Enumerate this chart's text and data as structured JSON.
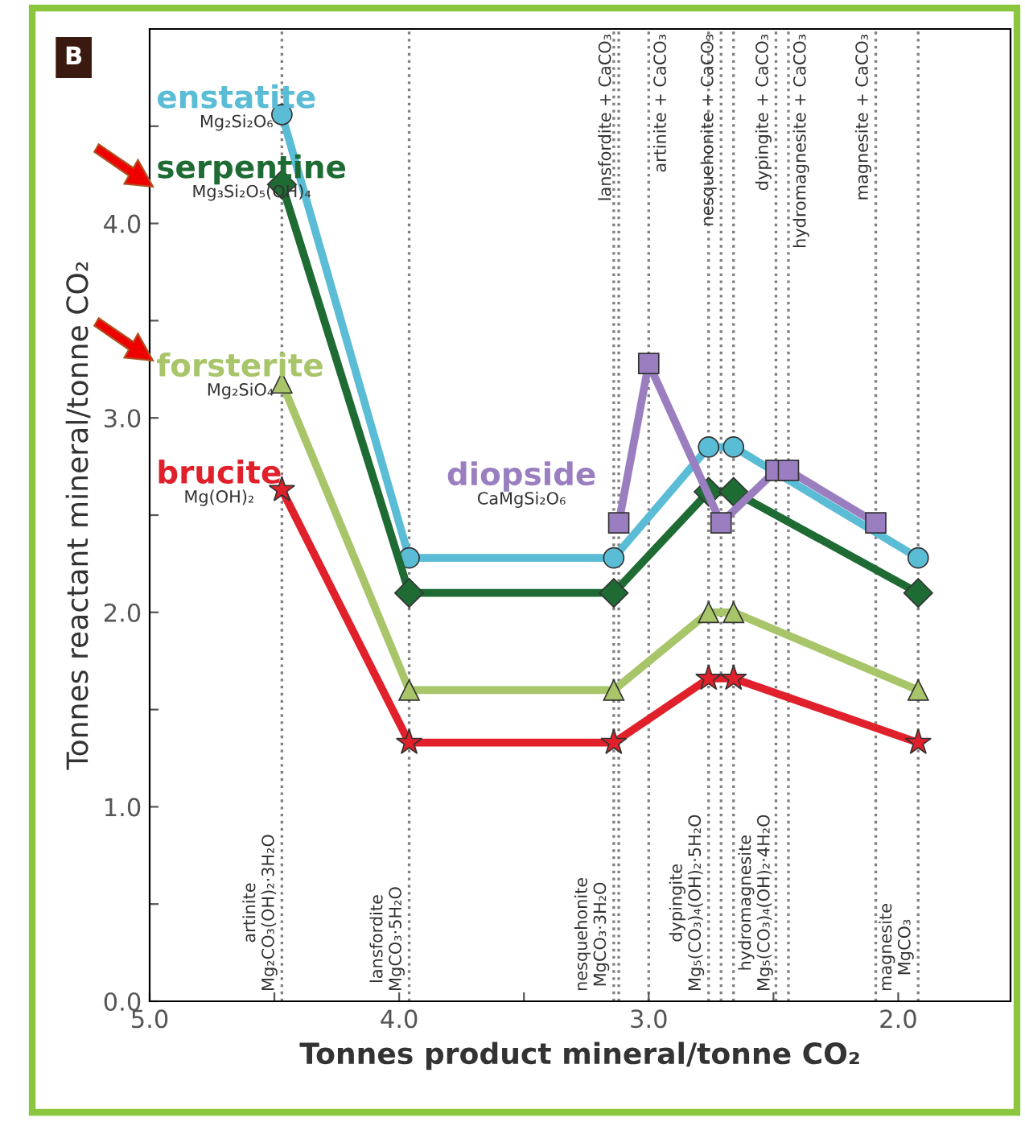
{
  "chart_data": {
    "type": "line",
    "xlabel": "Tonnes product mineral/tonne CO₂",
    "ylabel": "Tonnes reactant mineral/tonne CO₂",
    "annotations": [
      "B",
      "Mg₂Si₂O₆",
      "Mg₃Si₂O₅(OH)₄",
      "Mg₂SiO₄",
      "Mg(OH)₂",
      "CaMgSi₂O₆"
    ],
    "xlim": [
      5.0,
      1.55
    ],
    "ylim": [
      0,
      5.0
    ],
    "xticks": [
      {
        "value": 5.0,
        "label": "5.0"
      },
      {
        "value": 4.5,
        "label": null
      },
      {
        "value": 4.0,
        "label": "4.0"
      },
      {
        "value": 3.5,
        "label": null
      },
      {
        "value": 3.0,
        "label": "3.0"
      },
      {
        "value": 2.5,
        "label": null
      },
      {
        "value": 2.0,
        "label": "2.0"
      }
    ],
    "yticks": [
      {
        "value": 0,
        "label": "0.0"
      },
      {
        "value": 0.5,
        "label": null
      },
      {
        "value": 1,
        "label": "1.0"
      },
      {
        "value": 1.5,
        "label": null
      },
      {
        "value": 2,
        "label": "2.0"
      },
      {
        "value": 2.5,
        "label": null
      },
      {
        "value": 3,
        "label": "3.0"
      },
      {
        "value": 3.5,
        "label": null
      },
      {
        "value": 4,
        "label": "4.0"
      },
      {
        "value": 4.5,
        "label": null
      }
    ],
    "grid": false,
    "legend": false,
    "series": [
      {
        "name": "enstatite",
        "color": "#5bbcd6",
        "marker": "circle",
        "x": [
          4.47,
          3.96,
          3.14,
          2.76,
          2.66,
          1.92
        ],
        "values": [
          4.56,
          2.28,
          2.28,
          2.85,
          2.85,
          2.28
        ]
      },
      {
        "name": "serpentine",
        "color": "#1e6b34",
        "marker": "diamond",
        "x": [
          4.47,
          3.96,
          3.14,
          2.76,
          2.66,
          1.92
        ],
        "values": [
          4.2,
          2.1,
          2.1,
          2.62,
          2.62,
          2.1
        ]
      },
      {
        "name": "forsterite",
        "color": "#a8c56a",
        "marker": "triangle",
        "x": [
          4.47,
          3.96,
          3.14,
          2.76,
          2.66,
          1.92
        ],
        "values": [
          3.18,
          1.6,
          1.6,
          2.0,
          2.0,
          1.6
        ]
      },
      {
        "name": "brucite",
        "color": "#e0202a",
        "marker": "star",
        "x": [
          4.47,
          3.96,
          3.14,
          2.76,
          2.66,
          1.92
        ],
        "values": [
          2.63,
          1.33,
          1.33,
          1.66,
          1.66,
          1.33
        ]
      },
      {
        "name": "diopside",
        "color": "#9a7ec0",
        "marker": "square",
        "x": [
          3.12,
          3.0,
          2.71,
          2.49,
          2.44,
          2.09
        ],
        "values": [
          2.46,
          3.28,
          2.46,
          2.73,
          2.73,
          2.46
        ]
      }
    ],
    "ref_lines": [
      {
        "axis": "x",
        "value": 4.47,
        "label": "artinite\nMg₂CO₃(OH)₂·3H₂O",
        "color": "#808080",
        "line_style": "dotted"
      },
      {
        "axis": "x",
        "value": 3.96,
        "label": "lansfordite\nMgCO₃·5H₂O",
        "color": "#808080",
        "line_style": "dotted"
      },
      {
        "axis": "x",
        "value": 3.14,
        "label": "nesquehonite\nMgCO₃·3H₂O",
        "color": "#808080",
        "line_style": "dotted"
      },
      {
        "axis": "x",
        "value": 2.76,
        "label": "dypingite\nMg₅(CO₃)₄(OH)₂·5H₂O",
        "color": "#808080",
        "line_style": "dotted"
      },
      {
        "axis": "x",
        "value": 2.66,
        "label": "hydromagnesite\nMg₅(CO₃)₄(OH)₂·4H₂O",
        "color": "#808080",
        "line_style": "dotted"
      },
      {
        "axis": "x",
        "value": 1.92,
        "label": "magnesite\nMgCO₃",
        "color": "#808080",
        "line_style": "dotted"
      },
      {
        "axis": "x",
        "value": 3.12,
        "label": "lansfordite + CaCO₃",
        "color": "#808080",
        "line_style": "dotted"
      },
      {
        "axis": "x",
        "value": 3.0,
        "label": "artinite + CaCO₃",
        "color": "#808080",
        "line_style": "dotted"
      },
      {
        "axis": "x",
        "value": 2.71,
        "label": "nesquehonite + CaCO₃",
        "color": "#808080",
        "line_style": "dotted"
      },
      {
        "axis": "x",
        "value": 2.49,
        "label": "dypingite + CaCO₃",
        "color": "#808080",
        "line_style": "dotted"
      },
      {
        "axis": "x",
        "value": 2.44,
        "label": "hydromagnesite + CaCO₃",
        "color": "#808080",
        "line_style": "dotted"
      },
      {
        "axis": "x",
        "value": 2.09,
        "label": "magnesite + CaCO₃",
        "color": "#808080",
        "line_style": "dotted"
      }
    ]
  }
}
